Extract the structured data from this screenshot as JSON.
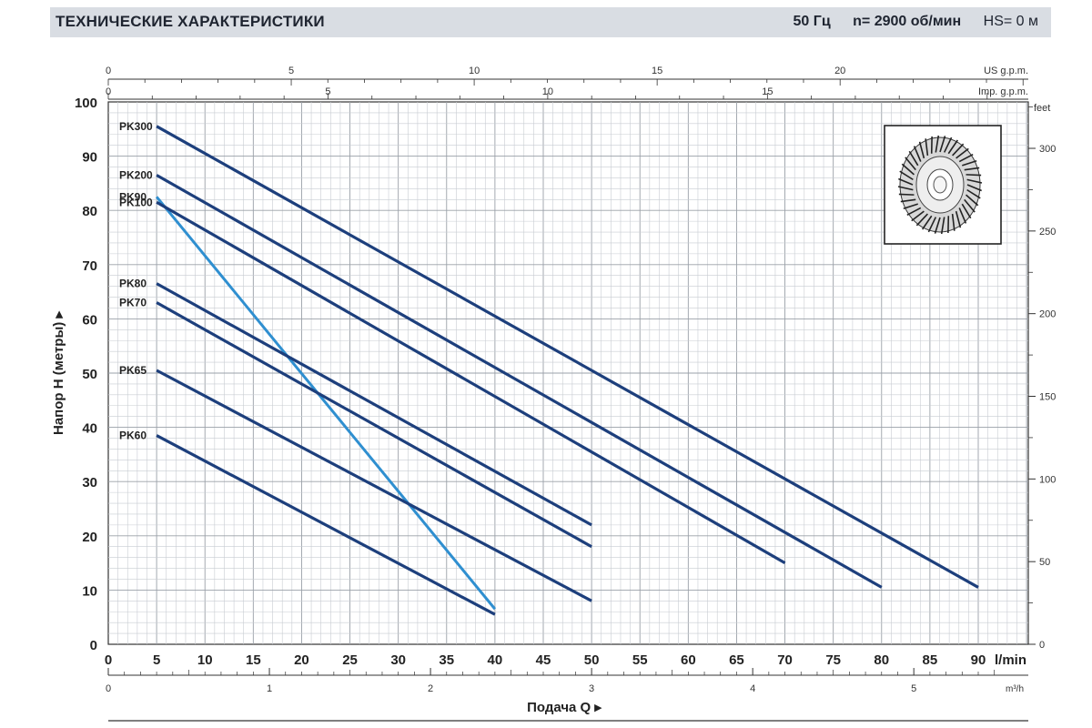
{
  "header": {
    "title": "ТЕХНИЧЕСКИЕ ХАРАКТЕРИСТИКИ",
    "frequency": "50 Гц",
    "speed": "n= 2900  об/мин",
    "hs": "HS= 0 м"
  },
  "chart_data": {
    "type": "line",
    "ylabel": "Напор Н (метры)",
    "xlabel": "Подача Q",
    "x_unit_lmin": "l/min",
    "x_unit_m3h": "m³/h",
    "top_unit_us": "US g.p.m.",
    "top_unit_imp": "Imp. g.p.m.",
    "right_unit": "feet",
    "grid": true,
    "xlim": [
      0,
      95
    ],
    "ylim": [
      0,
      100
    ],
    "x_ticks_lmin": [
      0,
      5,
      10,
      15,
      20,
      25,
      30,
      35,
      40,
      45,
      50,
      55,
      60,
      65,
      70,
      75,
      80,
      85,
      90
    ],
    "x_ticks_m3h": [
      0,
      1,
      2,
      3,
      4,
      5
    ],
    "us_gpm_ticks": [
      0,
      5,
      10,
      15,
      20
    ],
    "imp_gpm_ticks": [
      0,
      5,
      10,
      15
    ],
    "y_ticks": [
      0,
      10,
      20,
      30,
      40,
      50,
      60,
      70,
      80,
      90,
      100
    ],
    "feet_ticks": [
      0,
      50,
      100,
      150,
      200,
      250,
      300
    ],
    "series": [
      {
        "name": "PK300",
        "color": "#1d3f7c",
        "x": [
          5,
          90
        ],
        "y": [
          95.5,
          10.5
        ]
      },
      {
        "name": "PK200",
        "color": "#1d3f7c",
        "x": [
          5,
          80
        ],
        "y": [
          86.5,
          10.5
        ]
      },
      {
        "name": "PK90",
        "color": "#2f8fd0",
        "x": [
          5,
          40
        ],
        "y": [
          82.5,
          6.5
        ]
      },
      {
        "name": "PK100",
        "color": "#1d3f7c",
        "x": [
          5,
          70
        ],
        "y": [
          81.5,
          15
        ]
      },
      {
        "name": "PK80",
        "color": "#1d3f7c",
        "x": [
          5,
          50
        ],
        "y": [
          66.5,
          22
        ]
      },
      {
        "name": "PK70",
        "color": "#1d3f7c",
        "x": [
          5,
          50
        ],
        "y": [
          63,
          18
        ]
      },
      {
        "name": "PK65",
        "color": "#1d3f7c",
        "x": [
          5,
          50
        ],
        "y": [
          50.5,
          8
        ]
      },
      {
        "name": "PK60",
        "color": "#1d3f7c",
        "x": [
          5,
          40
        ],
        "y": [
          38.5,
          5.5
        ]
      }
    ]
  },
  "impeller": {
    "icon": "impeller-icon"
  }
}
